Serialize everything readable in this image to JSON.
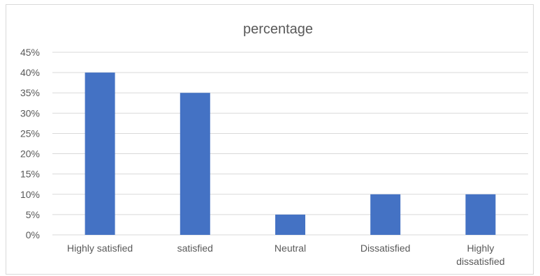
{
  "chart_data": {
    "type": "bar",
    "title": "percentage",
    "categories": [
      "Highly satisfied",
      "satisfied",
      "Neutral",
      "Dissatisfied",
      "Highly\ndissatisfied"
    ],
    "values": [
      40,
      35,
      5,
      10,
      10
    ],
    "y_unit": "%",
    "ylim": [
      0,
      45
    ],
    "y_ticks": [
      0,
      5,
      10,
      15,
      20,
      25,
      30,
      35,
      40,
      45
    ],
    "y_tick_labels": [
      "0%",
      "5%",
      "10%",
      "15%",
      "20%",
      "25%",
      "30%",
      "35%",
      "40%",
      "45%"
    ],
    "grid": true,
    "legend": "none",
    "bar_color": "#4472c4",
    "grid_color": "#d9d9d9"
  }
}
